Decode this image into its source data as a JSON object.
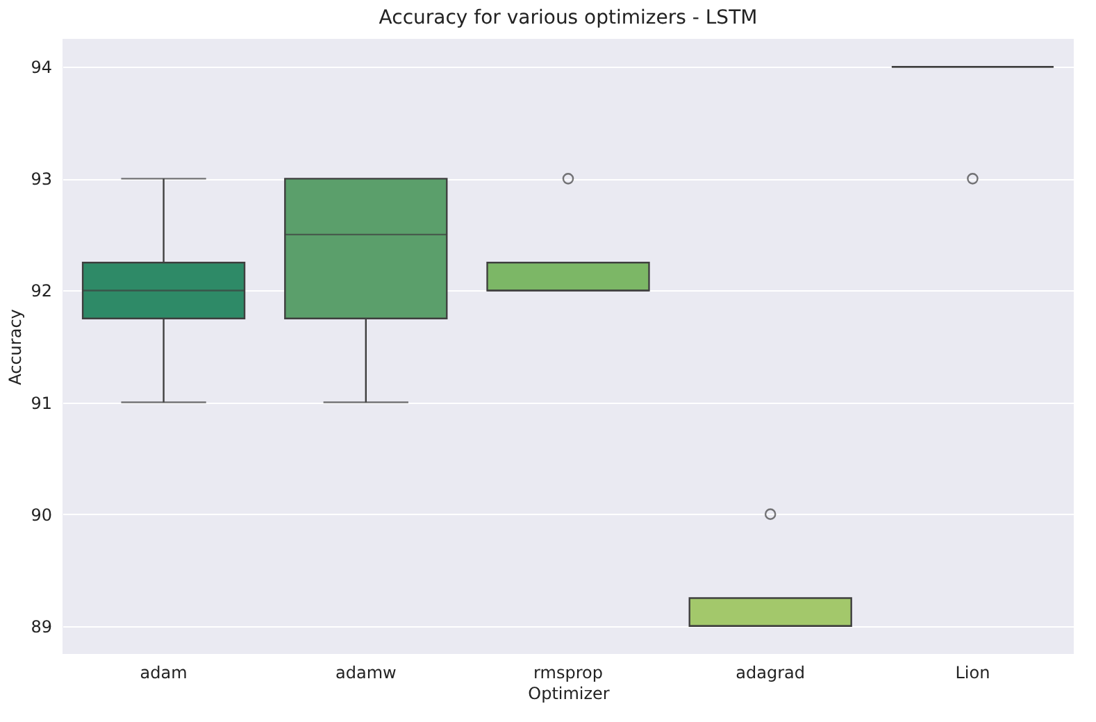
{
  "chart_data": {
    "type": "box",
    "title": "Accuracy for various optimizers - LSTM",
    "xlabel": "Optimizer",
    "ylabel": "Accuracy",
    "categories": [
      "adam",
      "adamw",
      "rmsprop",
      "adagrad",
      "Lion"
    ],
    "boxes": [
      {
        "low": 91,
        "q1": 91.75,
        "median": 92,
        "q3": 92.25,
        "high": 93
      },
      {
        "low": 91,
        "q1": 91.75,
        "median": 92.5,
        "q3": 93,
        "high": 93
      },
      {
        "low": 92,
        "q1": 92,
        "median": 92,
        "q3": 92.25,
        "high": 92.25,
        "outliers": [
          93
        ]
      },
      {
        "low": 89,
        "q1": 89,
        "median": 89,
        "q3": 89.25,
        "high": 89.25,
        "outliers": [
          90
        ]
      },
      {
        "low": 94,
        "q1": 94,
        "median": 94,
        "q3": 94,
        "high": 94,
        "outliers": [
          93
        ]
      }
    ],
    "colors": [
      "#2e8a67",
      "#5b9f6b",
      "#7cb766",
      "#a3c86b",
      "#3f3f3f"
    ],
    "ylim": [
      88.75,
      94.25
    ],
    "yticks": [
      89,
      90,
      91,
      92,
      93,
      94
    ],
    "grid": "y"
  }
}
